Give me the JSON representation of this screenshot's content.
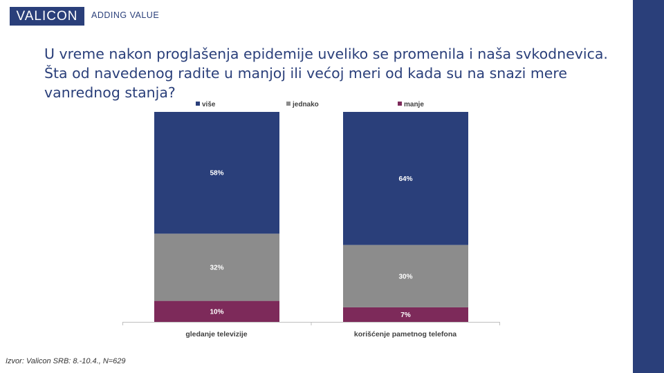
{
  "header": {
    "logo": "VALICON",
    "tagline": "ADDING VALUE"
  },
  "question": "U vreme nakon proglašenja epidemije uveliko se promenila i naša svkodnevica. Šta od navedenog radite u manjoj ili većoj meri od kada su na snazi mere vanrednog stanja?",
  "source": "Izvor: Valicon SRB: 8.-10.4., N=629",
  "colors": {
    "brand": "#2a3f7a",
    "vise": "#2a3f7a",
    "jednako": "#8c8c8c",
    "manje": "#7d2a5a"
  },
  "chart_data": {
    "type": "bar",
    "stacked": true,
    "categories": [
      "gledanje televizije",
      "korišćenje pametnog telefona"
    ],
    "series": [
      {
        "name": "više",
        "values": [
          58,
          64
        ],
        "labels": [
          "58%",
          "64%"
        ],
        "color": "#2a3f7a"
      },
      {
        "name": "jednako",
        "values": [
          32,
          30
        ],
        "labels": [
          "32%",
          "30%"
        ],
        "color": "#8c8c8c"
      },
      {
        "name": "manje",
        "values": [
          10,
          7
        ],
        "labels": [
          "10%",
          "7%"
        ],
        "color": "#7d2a5a"
      }
    ],
    "ylim": [
      0,
      100
    ],
    "legend_position": "top",
    "grid": false
  }
}
